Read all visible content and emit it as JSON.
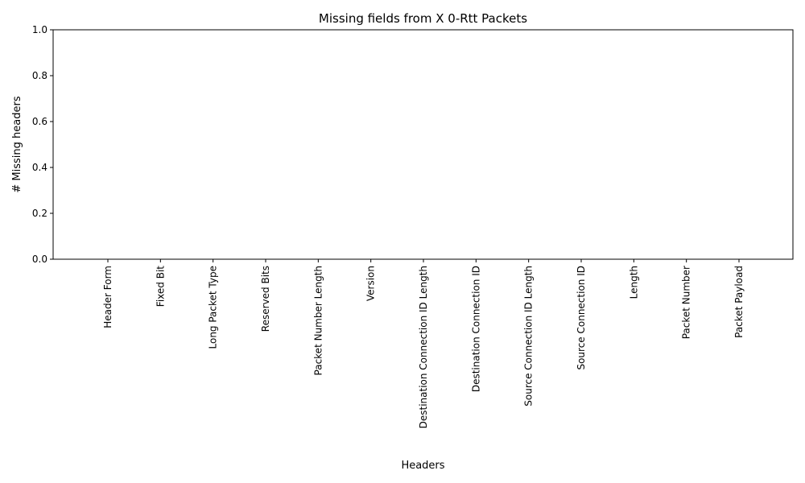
{
  "chart_data": {
    "type": "bar",
    "title": "Missing fields from X 0-Rtt Packets",
    "xlabel": "Headers",
    "ylabel": "# Missing headers",
    "categories": [
      "Header Form",
      "Fixed Bit",
      "Long Packet Type",
      "Reserved Bits",
      "Packet Number Length",
      "Version",
      "Destination Connection ID Length",
      "Destination Connection ID",
      "Source Connection ID Length",
      "Source Connection ID",
      "Length",
      "Packet Number",
      "Packet Payload"
    ],
    "values": [
      0,
      0,
      0,
      0,
      0,
      0,
      0,
      0,
      0,
      0,
      0,
      0,
      0
    ],
    "ylim": [
      0,
      1.0
    ],
    "yticks": [
      "0.0",
      "0.2",
      "0.4",
      "0.6",
      "0.8",
      "1.0"
    ],
    "grid": false,
    "colors": {
      "bar": "#1f77b4",
      "axis": "#000000"
    }
  }
}
